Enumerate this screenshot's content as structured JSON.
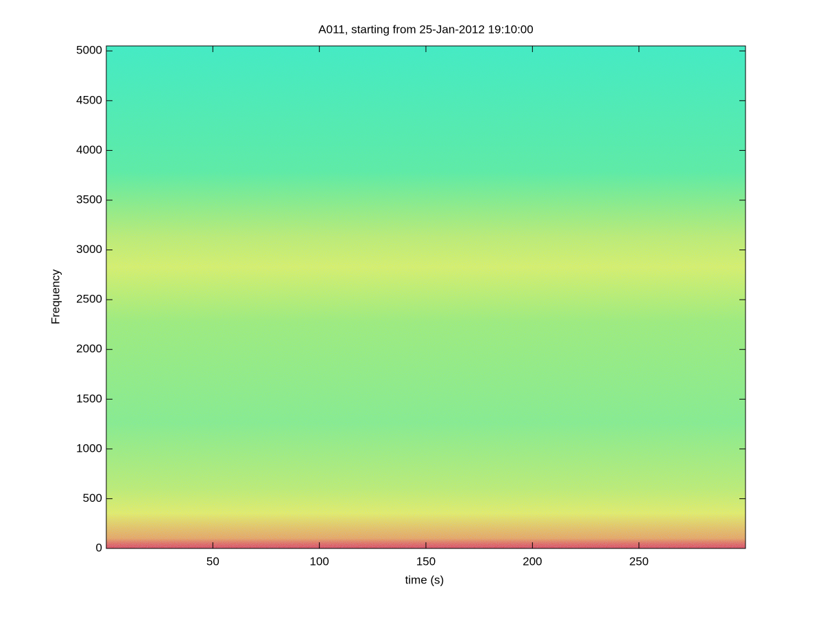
{
  "chart_data": {
    "type": "spectrogram",
    "title": "A011, starting from 25-Jan-2012 19:10:00",
    "x_label": "time (s)",
    "y_label": "Frequency",
    "xlim": [
      0,
      300
    ],
    "xticks": [
      50,
      100,
      150,
      200,
      250
    ],
    "ylim": [
      0,
      5050
    ],
    "yticks": [
      0,
      500,
      1000,
      1500,
      2000,
      2500,
      3000,
      3500,
      4000,
      4500,
      5000
    ]
  }
}
